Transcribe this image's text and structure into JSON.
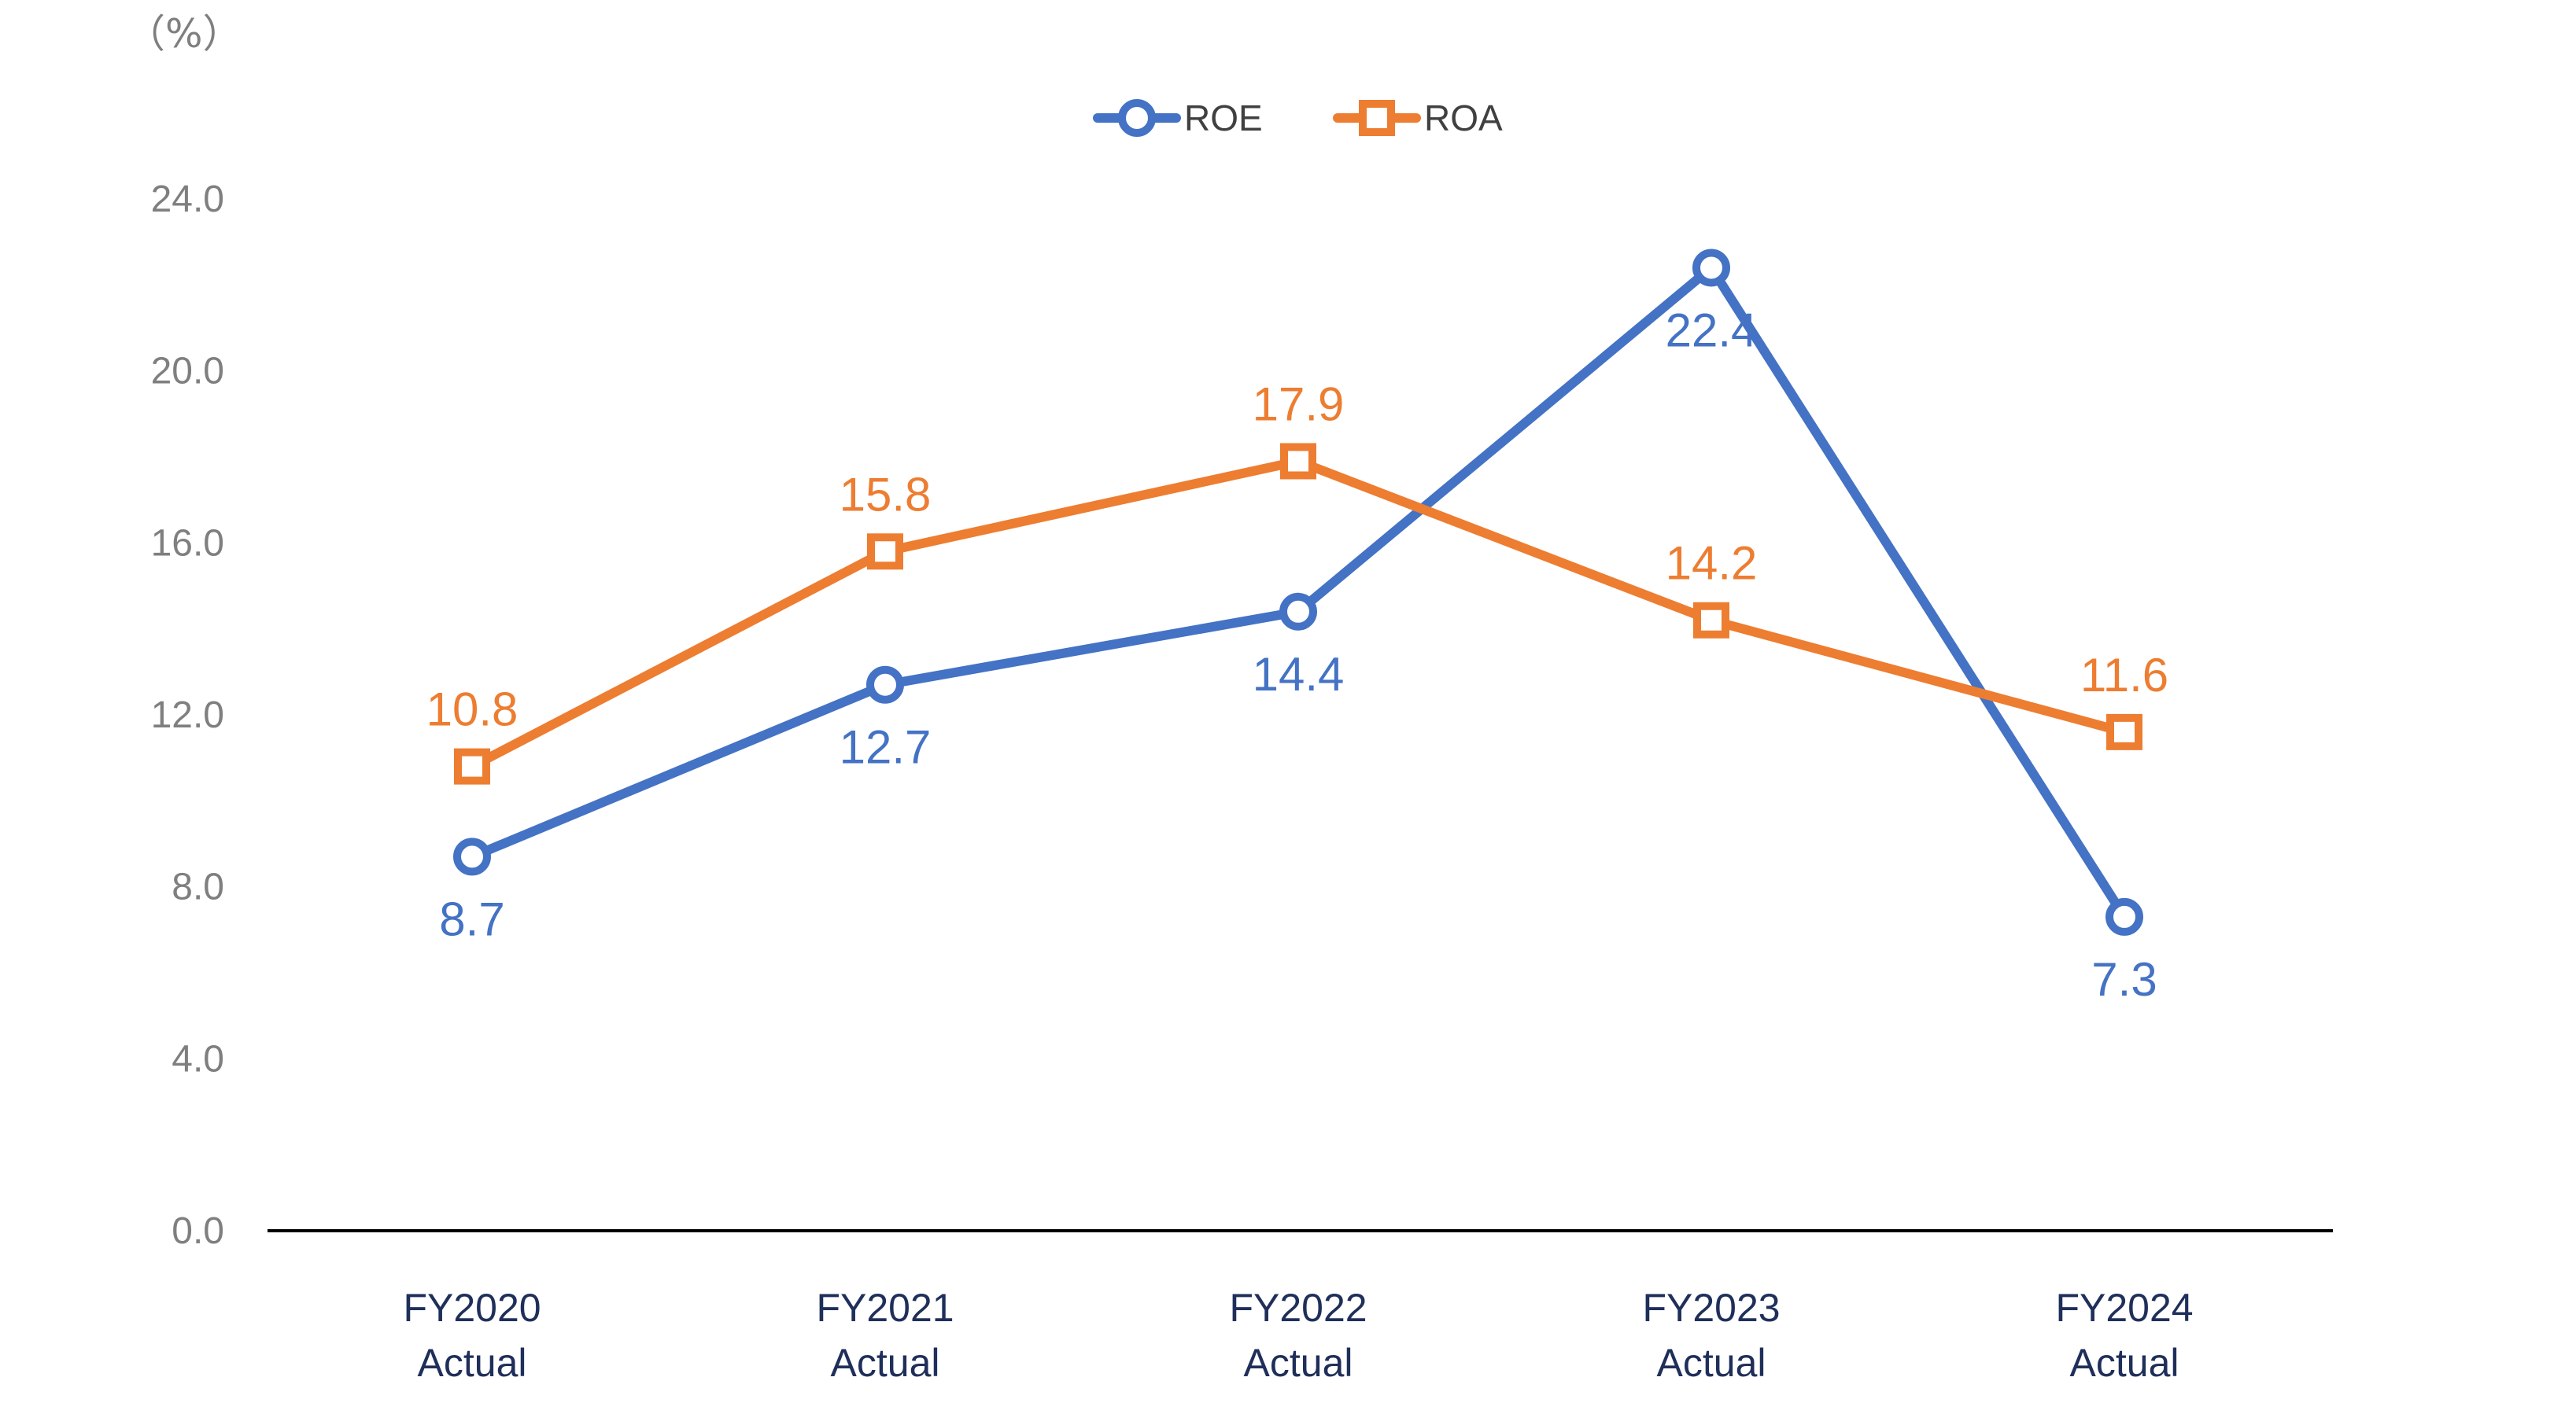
{
  "chart_data": {
    "type": "line",
    "unit_label": "（%）",
    "categories": [
      [
        "FY2020",
        "Actual"
      ],
      [
        "FY2021",
        "Actual"
      ],
      [
        "FY2022",
        "Actual"
      ],
      [
        "FY2023",
        "Actual"
      ],
      [
        "FY2024",
        "Actual"
      ]
    ],
    "y_ticks": [
      "0.0",
      "4.0",
      "8.0",
      "12.0",
      "16.0",
      "20.0",
      "24.0"
    ],
    "ylim": [
      0,
      24
    ],
    "grid": false,
    "legend_position": "top-center",
    "series": [
      {
        "name": "ROE",
        "color": "#4472c4",
        "marker": "circle",
        "values": [
          8.7,
          12.7,
          14.4,
          22.4,
          7.3
        ],
        "labels": [
          "8.7",
          "12.7",
          "14.4",
          "22.4",
          "7.3"
        ],
        "label_position": [
          "below",
          "below",
          "below",
          "below",
          "below"
        ]
      },
      {
        "name": "ROA",
        "color": "#ed7d31",
        "marker": "square",
        "values": [
          10.8,
          15.8,
          17.9,
          14.2,
          11.6
        ],
        "labels": [
          "10.8",
          "15.8",
          "17.9",
          "14.2",
          "11.6"
        ],
        "label_position": [
          "above",
          "above",
          "above",
          "above",
          "above"
        ]
      }
    ]
  }
}
